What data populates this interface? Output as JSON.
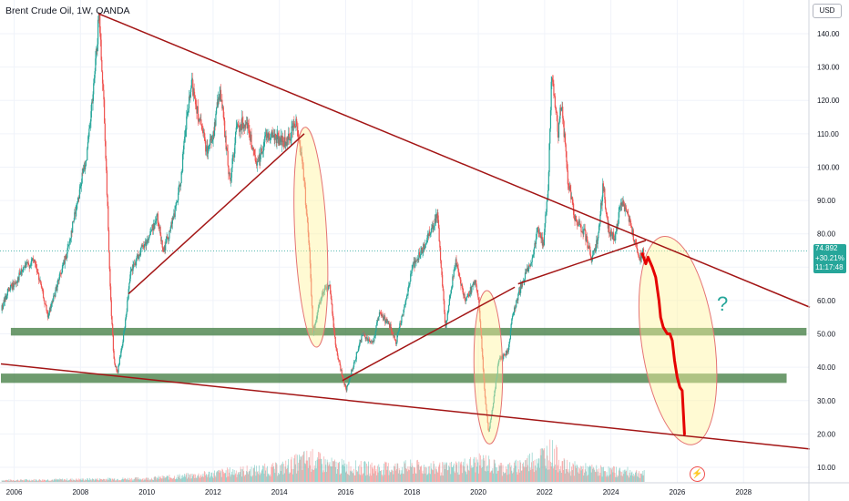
{
  "header": {
    "title": "Brent Crude Oil, 1W, OANDA",
    "currency": "USD"
  },
  "price_badge": {
    "price": "74.892",
    "change": "+30.21%",
    "countdown": "11:17:48"
  },
  "annotation": {
    "question_mark": "?"
  },
  "colors": {
    "up": "#26a69a",
    "down": "#ef5350",
    "trendline": "#a31515",
    "support_zone": "#3d7a3d",
    "highlight": "#fff59d",
    "projection": "#e50000"
  },
  "chart_data": {
    "type": "candlestick",
    "title": "Brent Crude Oil, 1W, OANDA",
    "y_unit": "USD",
    "ylim": [
      5,
      149
    ],
    "xlim": [
      2005.6,
      2030.0
    ],
    "x_tick_labels": [
      "2006",
      "2008",
      "2010",
      "2012",
      "2014",
      "2016",
      "2018",
      "2020",
      "2022",
      "2024",
      "2026",
      "2028"
    ],
    "y_tick_labels": [
      "10.00",
      "20.00",
      "30.00",
      "40.00",
      "50.00",
      "60.00",
      "70.00",
      "80.00",
      "90.00",
      "100.00",
      "110.00",
      "120.00",
      "130.00",
      "140.00"
    ],
    "y_ticks": [
      10,
      20,
      30,
      40,
      50,
      60,
      70,
      80,
      90,
      100,
      110,
      120,
      130,
      140
    ],
    "price_path": [
      [
        2005.6,
        57
      ],
      [
        2005.8,
        63
      ],
      [
        2006.0,
        65
      ],
      [
        2006.3,
        70
      ],
      [
        2006.6,
        72
      ],
      [
        2006.9,
        60
      ],
      [
        2007.0,
        55
      ],
      [
        2007.3,
        65
      ],
      [
        2007.6,
        75
      ],
      [
        2007.9,
        90
      ],
      [
        2008.2,
        105
      ],
      [
        2008.4,
        125
      ],
      [
        2008.55,
        146
      ],
      [
        2008.7,
        118
      ],
      [
        2008.9,
        60
      ],
      [
        2009.0,
        42
      ],
      [
        2009.1,
        38
      ],
      [
        2009.3,
        50
      ],
      [
        2009.5,
        68
      ],
      [
        2009.8,
        75
      ],
      [
        2010.0,
        78
      ],
      [
        2010.3,
        85
      ],
      [
        2010.5,
        75
      ],
      [
        2010.8,
        85
      ],
      [
        2011.0,
        95
      ],
      [
        2011.2,
        115
      ],
      [
        2011.35,
        125
      ],
      [
        2011.6,
        113
      ],
      [
        2011.8,
        105
      ],
      [
        2012.0,
        110
      ],
      [
        2012.2,
        124
      ],
      [
        2012.5,
        95
      ],
      [
        2012.7,
        112
      ],
      [
        2013.0,
        114
      ],
      [
        2013.3,
        100
      ],
      [
        2013.6,
        110
      ],
      [
        2013.9,
        109
      ],
      [
        2014.2,
        107
      ],
      [
        2014.5,
        114
      ],
      [
        2014.7,
        100
      ],
      [
        2014.9,
        75
      ],
      [
        2015.0,
        50
      ],
      [
        2015.3,
        63
      ],
      [
        2015.5,
        65
      ],
      [
        2015.7,
        45
      ],
      [
        2015.9,
        37
      ],
      [
        2016.0,
        33
      ],
      [
        2016.2,
        40
      ],
      [
        2016.5,
        50
      ],
      [
        2016.8,
        47
      ],
      [
        2017.0,
        56
      ],
      [
        2017.3,
        53
      ],
      [
        2017.5,
        47
      ],
      [
        2017.8,
        60
      ],
      [
        2018.0,
        70
      ],
      [
        2018.3,
        75
      ],
      [
        2018.75,
        86
      ],
      [
        2019.0,
        52
      ],
      [
        2019.3,
        72
      ],
      [
        2019.6,
        60
      ],
      [
        2019.9,
        66
      ],
      [
        2020.0,
        60
      ],
      [
        2020.2,
        30
      ],
      [
        2020.3,
        20
      ],
      [
        2020.45,
        30
      ],
      [
        2020.6,
        42
      ],
      [
        2020.9,
        45
      ],
      [
        2021.0,
        55
      ],
      [
        2021.3,
        65
      ],
      [
        2021.6,
        72
      ],
      [
        2021.8,
        82
      ],
      [
        2021.95,
        76
      ],
      [
        2022.1,
        95
      ],
      [
        2022.2,
        128
      ],
      [
        2022.4,
        110
      ],
      [
        2022.5,
        120
      ],
      [
        2022.7,
        95
      ],
      [
        2022.9,
        85
      ],
      [
        2023.2,
        80
      ],
      [
        2023.4,
        73
      ],
      [
        2023.6,
        78
      ],
      [
        2023.75,
        95
      ],
      [
        2023.9,
        82
      ],
      [
        2024.1,
        78
      ],
      [
        2024.3,
        90
      ],
      [
        2024.5,
        85
      ],
      [
        2024.7,
        78
      ],
      [
        2024.85,
        73
      ],
      [
        2025.0,
        75
      ]
    ],
    "volume_profile": [
      [
        2005.6,
        1
      ],
      [
        2008.0,
        1.5
      ],
      [
        2010.0,
        2
      ],
      [
        2011.5,
        4
      ],
      [
        2012.5,
        6
      ],
      [
        2014.0,
        8
      ],
      [
        2014.9,
        14
      ],
      [
        2015.5,
        10
      ],
      [
        2016.0,
        9
      ],
      [
        2017.0,
        8
      ],
      [
        2018.0,
        9
      ],
      [
        2019.0,
        8
      ],
      [
        2020.2,
        12
      ],
      [
        2020.5,
        9
      ],
      [
        2021.0,
        8
      ],
      [
        2022.2,
        18
      ],
      [
        2022.6,
        9
      ],
      [
        2023.5,
        7
      ],
      [
        2024.5,
        6
      ],
      [
        2025.0,
        5
      ]
    ],
    "trendlines": [
      {
        "x": [
          2008.55,
          2030.0
        ],
        "y": [
          146,
          58
        ]
      },
      {
        "x": [
          2009.45,
          2014.75
        ],
        "y": [
          62,
          110
        ]
      },
      {
        "x": [
          2005.6,
          2030.0
        ],
        "y": [
          41,
          15.5
        ]
      },
      {
        "x": [
          2015.9,
          2021.1
        ],
        "y": [
          36,
          64
        ]
      },
      {
        "x": [
          2021.2,
          2025.05
        ],
        "y": [
          65,
          78
        ]
      }
    ],
    "support_zones": [
      {
        "y": [
          49.5,
          51.8
        ],
        "x": [
          2005.9,
          2029.9
        ]
      },
      {
        "y": [
          35.3,
          38.1
        ],
        "x": [
          2005.6,
          2029.3
        ]
      }
    ],
    "highlight_ellipses": [
      {
        "cx": 2014.95,
        "cy": 79,
        "rx": 0.48,
        "ry": 33
      },
      {
        "cx": 2020.3,
        "cy": 40,
        "rx": 0.43,
        "ry": 23
      },
      {
        "cx": 2026.02,
        "cy": 48,
        "rx": 1.1,
        "ry": 31.5
      }
    ],
    "projection_path": [
      [
        2024.95,
        74
      ],
      [
        2025.05,
        71
      ],
      [
        2025.12,
        73
      ],
      [
        2025.25,
        70
      ],
      [
        2025.35,
        67
      ],
      [
        2025.45,
        60
      ],
      [
        2025.5,
        55
      ],
      [
        2025.58,
        52
      ],
      [
        2025.7,
        50
      ],
      [
        2025.78,
        50
      ],
      [
        2025.85,
        48
      ],
      [
        2025.92,
        42
      ],
      [
        2026.0,
        37
      ],
      [
        2026.08,
        34
      ],
      [
        2026.15,
        33
      ],
      [
        2026.22,
        20
      ]
    ]
  }
}
